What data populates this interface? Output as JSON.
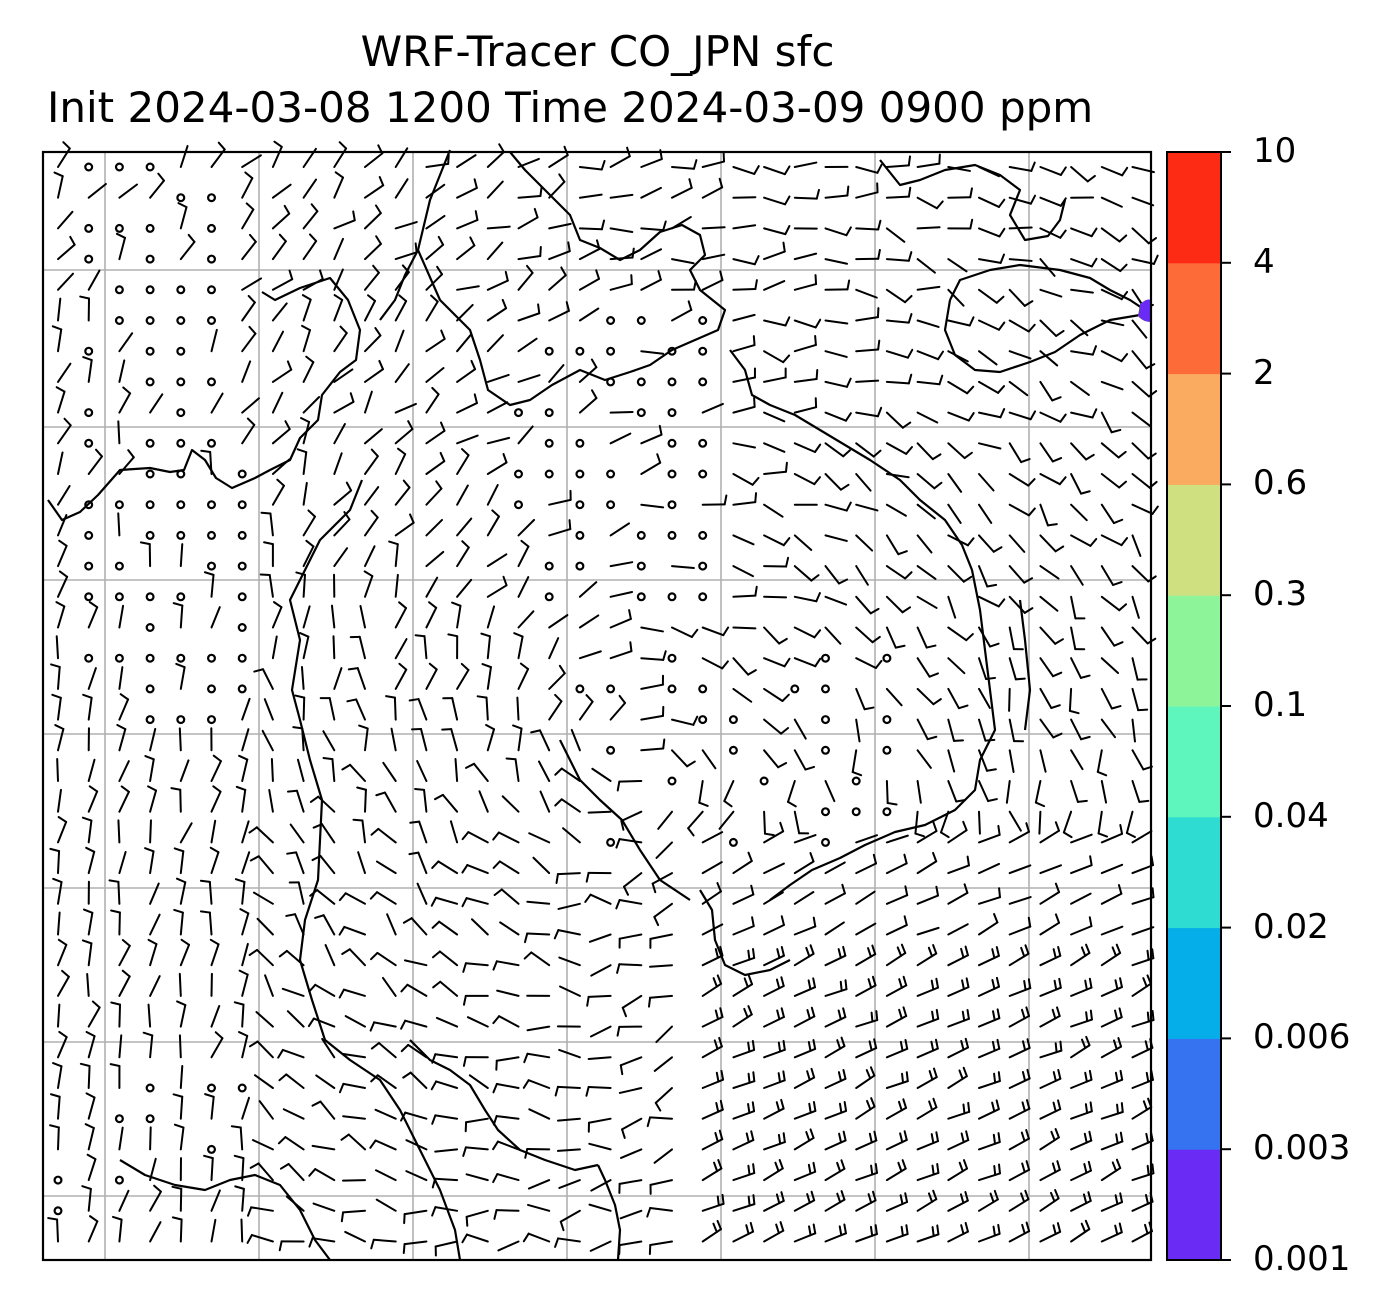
{
  "title": {
    "line1": "WRF-Tracer CO_JPN sfc",
    "line2": "Init 2024-03-08 1200 Time 2024-03-09 0900 ppm"
  },
  "colorbar": {
    "levels": [
      "0.001",
      "0.003",
      "0.006",
      "0.02",
      "0.04",
      "0.1",
      "0.3",
      "0.6",
      "2",
      "4",
      "10"
    ],
    "colors": [
      "#6a2cf5",
      "#3573f1",
      "#05aee8",
      "#2fdcd1",
      "#5ff6be",
      "#8ef49a",
      "#cfe080",
      "#fbab5f",
      "#fd6c38",
      "#fd2a14"
    ]
  },
  "map": {
    "background": "#ffffff",
    "gridline_color": "#b0b0b0",
    "tracer_patch_color": "#6a2cf5",
    "wind_barb_color": "#000000",
    "coastline_color": "#000000"
  }
}
